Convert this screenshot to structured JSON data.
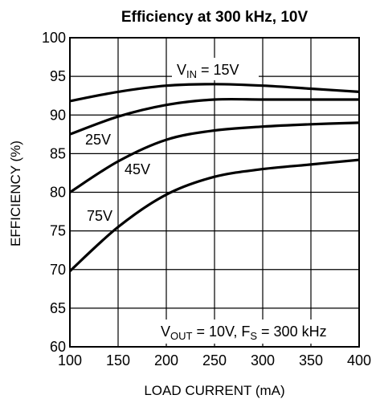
{
  "chart_data": {
    "type": "line",
    "title": "Efficiency at 300 kHz, 10V",
    "xlabel": "LOAD CURRENT (mA)",
    "ylabel": "EFFICIENCY (%)",
    "xlim": [
      100,
      400
    ],
    "ylim": [
      60,
      100
    ],
    "xticks": [
      100,
      150,
      200,
      250,
      300,
      350,
      400
    ],
    "yticks": [
      60,
      65,
      70,
      75,
      80,
      85,
      90,
      95,
      100
    ],
    "grid": true,
    "series": [
      {
        "name_prefix": "V",
        "name_sub": "IN",
        "name_value": " = 15V",
        "x": [
          100,
          150,
          200,
          250,
          300,
          350,
          400
        ],
        "y": [
          91.8,
          93.0,
          93.8,
          94.0,
          93.8,
          93.4,
          93.0
        ]
      },
      {
        "name": "25V",
        "x": [
          100,
          150,
          200,
          250,
          300,
          350,
          400
        ],
        "y": [
          87.5,
          89.8,
          91.3,
          92.0,
          92.0,
          92.0,
          92.0
        ]
      },
      {
        "name": "45V",
        "x": [
          100,
          150,
          200,
          250,
          300,
          350,
          400
        ],
        "y": [
          80.0,
          84.0,
          86.8,
          88.0,
          88.5,
          88.8,
          89.0
        ]
      },
      {
        "name": "75V",
        "x": [
          100,
          150,
          200,
          250,
          300,
          350,
          400
        ],
        "y": [
          69.8,
          75.5,
          79.7,
          82.0,
          83.0,
          83.6,
          84.2
        ]
      }
    ],
    "annotation": {
      "vout_prefix": "V",
      "vout_sub": "OUT",
      "vout_text": " = 10V, F",
      "fs_sub": "S",
      "fs_text": " = 300 kHz"
    }
  }
}
